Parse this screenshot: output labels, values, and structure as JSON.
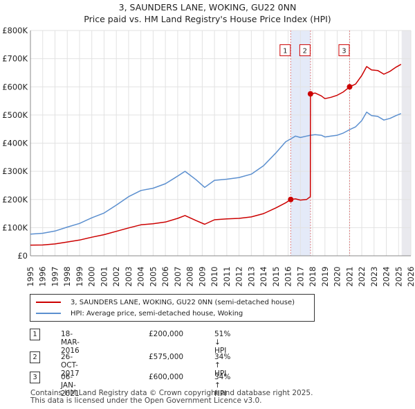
{
  "chart_data": {
    "type": "line",
    "title": "3, SAUNDERS LANE, WOKING, GU22 0NN",
    "subtitle": "Price paid vs. HM Land Registry's House Price Index (HPI)",
    "xlabel": "",
    "ylabel": "",
    "xlim": [
      1995,
      2026
    ],
    "ylim": [
      0,
      800000
    ],
    "grid": true,
    "y_ticks": [
      {
        "value": 0,
        "label": "£0"
      },
      {
        "value": 100000,
        "label": "£100K"
      },
      {
        "value": 200000,
        "label": "£200K"
      },
      {
        "value": 300000,
        "label": "£300K"
      },
      {
        "value": 400000,
        "label": "£400K"
      },
      {
        "value": 500000,
        "label": "£500K"
      },
      {
        "value": 600000,
        "label": "£600K"
      },
      {
        "value": 700000,
        "label": "£700K"
      },
      {
        "value": 800000,
        "label": "£800K"
      }
    ],
    "x_ticks": [
      "1995",
      "1996",
      "1997",
      "1998",
      "1999",
      "2000",
      "2001",
      "2002",
      "2003",
      "2004",
      "2005",
      "2006",
      "2007",
      "2008",
      "2009",
      "2010",
      "2011",
      "2012",
      "2013",
      "2014",
      "2015",
      "2016",
      "2017",
      "2018",
      "2019",
      "2020",
      "2021",
      "2022",
      "2023",
      "2024",
      "2025",
      "2026"
    ],
    "series": [
      {
        "name": "3, SAUNDERS LANE, WOKING, GU22 0NN (semi-detached house)",
        "color": "#cc0000",
        "points": [
          [
            1995.0,
            38000
          ],
          [
            1996.0,
            38500
          ],
          [
            1997.0,
            42000
          ],
          [
            1998.0,
            49000
          ],
          [
            1999.0,
            56000
          ],
          [
            2000.0,
            66000
          ],
          [
            2001.0,
            75000
          ],
          [
            2002.0,
            87000
          ],
          [
            2003.0,
            99000
          ],
          [
            2004.0,
            110000
          ],
          [
            2005.0,
            114000
          ],
          [
            2006.0,
            120000
          ],
          [
            2007.0,
            133000
          ],
          [
            2007.6,
            143000
          ],
          [
            2008.5,
            125000
          ],
          [
            2009.2,
            112000
          ],
          [
            2010.0,
            128000
          ],
          [
            2011.0,
            131000
          ],
          [
            2012.0,
            133000
          ],
          [
            2013.0,
            138000
          ],
          [
            2014.0,
            150000
          ],
          [
            2015.0,
            170000
          ],
          [
            2015.8,
            188000
          ],
          [
            2016.21,
            200000
          ],
          [
            2016.6,
            202000
          ],
          [
            2017.0,
            198000
          ],
          [
            2017.5,
            200000
          ],
          [
            2017.81,
            210000
          ],
          [
            2017.82,
            575000
          ],
          [
            2018.2,
            578000
          ],
          [
            2018.7,
            568000
          ],
          [
            2019.0,
            558000
          ],
          [
            2019.5,
            563000
          ],
          [
            2020.0,
            570000
          ],
          [
            2020.5,
            582000
          ],
          [
            2021.01,
            600000
          ],
          [
            2021.5,
            610000
          ],
          [
            2022.0,
            640000
          ],
          [
            2022.4,
            672000
          ],
          [
            2022.8,
            660000
          ],
          [
            2023.3,
            658000
          ],
          [
            2023.8,
            645000
          ],
          [
            2024.3,
            655000
          ],
          [
            2024.8,
            670000
          ],
          [
            2025.2,
            680000
          ]
        ]
      },
      {
        "name": "HPI: Average price, semi-detached house, Woking",
        "color": "#5b8fcf",
        "points": [
          [
            1995.0,
            77000
          ],
          [
            1996.0,
            80000
          ],
          [
            1997.0,
            88000
          ],
          [
            1998.0,
            102000
          ],
          [
            1999.0,
            115000
          ],
          [
            2000.0,
            135000
          ],
          [
            2001.0,
            152000
          ],
          [
            2002.0,
            180000
          ],
          [
            2003.0,
            210000
          ],
          [
            2004.0,
            232000
          ],
          [
            2005.0,
            240000
          ],
          [
            2006.0,
            256000
          ],
          [
            2007.0,
            283000
          ],
          [
            2007.6,
            300000
          ],
          [
            2008.5,
            270000
          ],
          [
            2009.2,
            243000
          ],
          [
            2010.0,
            268000
          ],
          [
            2011.0,
            272000
          ],
          [
            2012.0,
            278000
          ],
          [
            2013.0,
            290000
          ],
          [
            2014.0,
            320000
          ],
          [
            2015.0,
            365000
          ],
          [
            2015.8,
            405000
          ],
          [
            2016.21,
            415000
          ],
          [
            2016.6,
            425000
          ],
          [
            2017.0,
            420000
          ],
          [
            2017.5,
            425000
          ],
          [
            2017.81,
            428000
          ],
          [
            2018.2,
            430000
          ],
          [
            2018.7,
            428000
          ],
          [
            2019.0,
            422000
          ],
          [
            2019.5,
            425000
          ],
          [
            2020.0,
            428000
          ],
          [
            2020.5,
            436000
          ],
          [
            2021.01,
            448000
          ],
          [
            2021.5,
            458000
          ],
          [
            2022.0,
            480000
          ],
          [
            2022.4,
            510000
          ],
          [
            2022.8,
            498000
          ],
          [
            2023.3,
            495000
          ],
          [
            2023.8,
            482000
          ],
          [
            2024.3,
            488000
          ],
          [
            2024.8,
            498000
          ],
          [
            2025.2,
            505000
          ]
        ]
      }
    ],
    "sales": [
      {
        "label": "1",
        "x": 2016.21,
        "price": 200000
      },
      {
        "label": "2",
        "x": 2017.82,
        "price": 575000
      },
      {
        "label": "3",
        "x": 2021.01,
        "price": 600000
      }
    ],
    "marker_label_value": 730000,
    "shaded_ranges": [
      [
        2016.21,
        2017.82
      ],
      [
        2025.25,
        2026.0
      ]
    ]
  },
  "legend": {
    "items": [
      {
        "label": "3, SAUNDERS LANE, WOKING, GU22 0NN (semi-detached house)",
        "color": "#cc0000"
      },
      {
        "label": "HPI: Average price, semi-detached house, Woking",
        "color": "#5b8fcf"
      }
    ]
  },
  "sales_table": [
    {
      "num": "1",
      "date": "18-MAR-2016",
      "price": "£200,000",
      "hpi": "51% ↓ HPI"
    },
    {
      "num": "2",
      "date": "26-OCT-2017",
      "price": "£575,000",
      "hpi": "34% ↑ HPI"
    },
    {
      "num": "3",
      "date": "06-JAN-2021",
      "price": "£600,000",
      "hpi": "34% ↑ HPI"
    }
  ],
  "footer": {
    "line1": "Contains HM Land Registry data © Crown copyright and database right 2025.",
    "line2": "This data is licensed under the Open Government Licence v3.0."
  }
}
